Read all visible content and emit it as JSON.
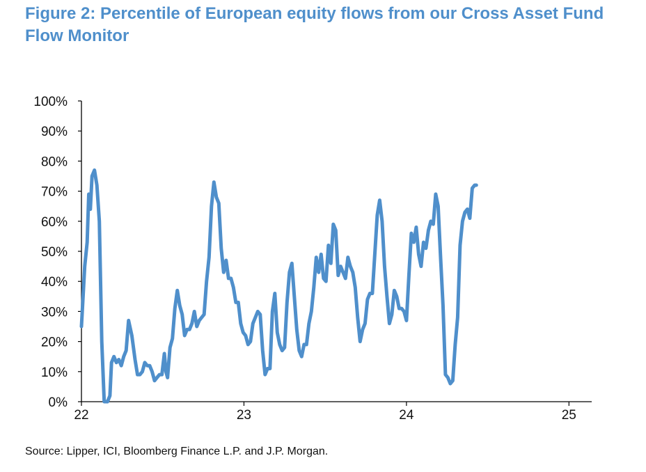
{
  "chart_data": {
    "type": "line",
    "title": "Figure 2: Percentile of European equity flows from our Cross Asset Fund Flow Monitor",
    "xlabel": "",
    "ylabel": "",
    "ylim": [
      0,
      100
    ],
    "xlim": [
      22.0,
      25.14
    ],
    "yticks": [
      0,
      10,
      20,
      30,
      40,
      50,
      60,
      70,
      80,
      90,
      100
    ],
    "ytick_labels": [
      "0%",
      "10%",
      "20%",
      "30%",
      "40%",
      "50%",
      "60%",
      "70%",
      "80%",
      "90%",
      "100%"
    ],
    "xticks": [
      22,
      23,
      24,
      25
    ],
    "xtick_labels": [
      "22",
      "23",
      "24",
      "25"
    ],
    "grid": false,
    "line_color": "#4f8fcb",
    "series": [
      {
        "name": "Percentile of European equity flows",
        "points": [
          [
            22.0,
            25
          ],
          [
            22.02,
            45
          ],
          [
            22.035,
            53
          ],
          [
            22.045,
            69
          ],
          [
            22.055,
            64
          ],
          [
            22.065,
            75
          ],
          [
            22.08,
            77
          ],
          [
            22.095,
            72
          ],
          [
            22.11,
            60
          ],
          [
            22.125,
            20
          ],
          [
            22.14,
            0
          ],
          [
            22.16,
            0
          ],
          [
            22.175,
            2
          ],
          [
            22.185,
            13
          ],
          [
            22.2,
            15
          ],
          [
            22.215,
            13
          ],
          [
            22.23,
            14
          ],
          [
            22.245,
            12
          ],
          [
            22.26,
            15
          ],
          [
            22.275,
            17
          ],
          [
            22.29,
            27
          ],
          [
            22.31,
            22
          ],
          [
            22.33,
            14
          ],
          [
            22.345,
            9
          ],
          [
            22.36,
            9
          ],
          [
            22.375,
            10
          ],
          [
            22.39,
            13
          ],
          [
            22.405,
            12
          ],
          [
            22.42,
            12
          ],
          [
            22.435,
            10
          ],
          [
            22.45,
            7
          ],
          [
            22.465,
            8
          ],
          [
            22.48,
            9
          ],
          [
            22.495,
            9
          ],
          [
            22.51,
            16
          ],
          [
            22.52,
            10
          ],
          [
            22.53,
            8
          ],
          [
            22.545,
            18
          ],
          [
            22.56,
            21
          ],
          [
            22.575,
            31
          ],
          [
            22.59,
            37
          ],
          [
            22.605,
            32
          ],
          [
            22.62,
            29
          ],
          [
            22.635,
            22
          ],
          [
            22.65,
            24
          ],
          [
            22.665,
            24
          ],
          [
            22.68,
            26
          ],
          [
            22.695,
            30
          ],
          [
            22.71,
            25
          ],
          [
            22.725,
            27
          ],
          [
            22.74,
            28
          ],
          [
            22.755,
            29
          ],
          [
            22.77,
            40
          ],
          [
            22.785,
            48
          ],
          [
            22.8,
            65
          ],
          [
            22.815,
            73
          ],
          [
            22.83,
            68
          ],
          [
            22.845,
            66
          ],
          [
            22.86,
            51
          ],
          [
            22.875,
            43
          ],
          [
            22.89,
            47
          ],
          [
            22.905,
            41
          ],
          [
            22.92,
            41
          ],
          [
            22.935,
            38
          ],
          [
            22.95,
            33
          ],
          [
            22.965,
            33
          ],
          [
            22.98,
            26
          ],
          [
            22.995,
            23
          ],
          [
            23.01,
            22
          ],
          [
            23.025,
            19
          ],
          [
            23.04,
            20
          ],
          [
            23.055,
            26
          ],
          [
            23.07,
            28
          ],
          [
            23.085,
            30
          ],
          [
            23.1,
            29
          ],
          [
            23.115,
            17
          ],
          [
            23.13,
            9
          ],
          [
            23.145,
            11
          ],
          [
            23.16,
            11
          ],
          [
            23.175,
            30
          ],
          [
            23.19,
            36
          ],
          [
            23.205,
            23
          ],
          [
            23.22,
            19
          ],
          [
            23.235,
            17
          ],
          [
            23.25,
            18
          ],
          [
            23.265,
            33
          ],
          [
            23.28,
            43
          ],
          [
            23.295,
            46
          ],
          [
            23.31,
            35
          ],
          [
            23.325,
            24
          ],
          [
            23.34,
            17
          ],
          [
            23.355,
            15
          ],
          [
            23.37,
            19
          ],
          [
            23.385,
            19
          ],
          [
            23.4,
            26
          ],
          [
            23.415,
            30
          ],
          [
            23.43,
            38
          ],
          [
            23.445,
            48
          ],
          [
            23.46,
            43
          ],
          [
            23.475,
            49
          ],
          [
            23.49,
            41
          ],
          [
            23.505,
            40
          ],
          [
            23.52,
            52
          ],
          [
            23.535,
            46
          ],
          [
            23.55,
            59
          ],
          [
            23.565,
            57
          ],
          [
            23.58,
            42
          ],
          [
            23.595,
            45
          ],
          [
            23.61,
            43
          ],
          [
            23.625,
            41
          ],
          [
            23.64,
            48
          ],
          [
            23.655,
            45
          ],
          [
            23.67,
            43
          ],
          [
            23.685,
            38
          ],
          [
            23.7,
            28
          ],
          [
            23.715,
            20
          ],
          [
            23.73,
            24
          ],
          [
            23.745,
            26
          ],
          [
            23.76,
            34
          ],
          [
            23.775,
            36
          ],
          [
            23.79,
            36
          ],
          [
            23.805,
            49
          ],
          [
            23.82,
            62
          ],
          [
            23.835,
            67
          ],
          [
            23.85,
            60
          ],
          [
            23.865,
            45
          ],
          [
            23.88,
            35
          ],
          [
            23.895,
            26
          ],
          [
            23.91,
            29
          ],
          [
            23.925,
            37
          ],
          [
            23.94,
            35
          ],
          [
            23.955,
            31
          ],
          [
            23.97,
            31
          ],
          [
            23.985,
            30
          ],
          [
            24.0,
            27
          ],
          [
            24.015,
            42
          ],
          [
            24.03,
            56
          ],
          [
            24.045,
            53
          ],
          [
            24.06,
            58
          ],
          [
            24.075,
            49
          ],
          [
            24.09,
            45
          ],
          [
            24.105,
            53
          ],
          [
            24.12,
            51
          ],
          [
            24.135,
            57
          ],
          [
            24.15,
            60
          ],
          [
            24.165,
            59
          ],
          [
            24.18,
            69
          ],
          [
            24.195,
            65
          ],
          [
            24.21,
            48
          ],
          [
            24.225,
            32
          ],
          [
            24.24,
            9
          ],
          [
            24.255,
            8
          ],
          [
            24.27,
            6
          ],
          [
            24.285,
            7
          ],
          [
            24.3,
            19
          ],
          [
            24.315,
            28
          ],
          [
            24.33,
            52
          ],
          [
            24.345,
            60
          ],
          [
            24.36,
            63
          ],
          [
            24.375,
            64
          ],
          [
            24.39,
            61
          ],
          [
            24.405,
            71
          ],
          [
            24.42,
            72
          ],
          [
            24.43,
            72
          ]
        ]
      }
    ]
  },
  "header": {
    "title": "Figure 2: Percentile of European equity flows from our Cross Asset Fund Flow Monitor"
  },
  "footer": {
    "source": "Source: Lipper, ICI, Bloomberg Finance L.P. and J.P. Morgan."
  }
}
